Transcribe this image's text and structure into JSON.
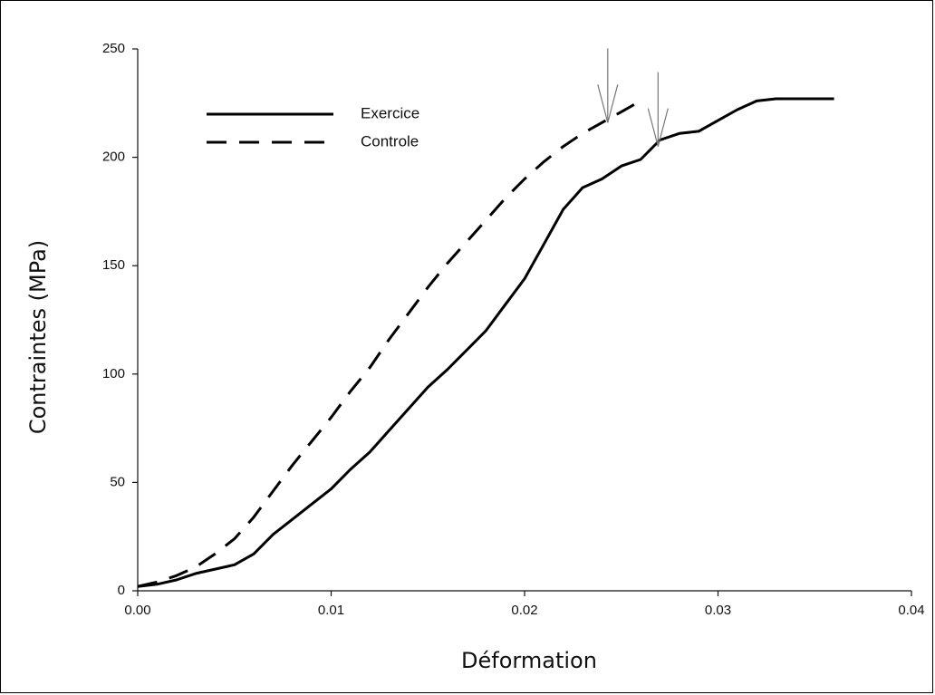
{
  "chart_data": {
    "type": "line",
    "title": "",
    "xlabel": "Déformation",
    "ylabel": "Contraintes (MPa)",
    "xlim": [
      0,
      0.04
    ],
    "ylim": [
      0,
      250
    ],
    "x_ticks": [
      0,
      0.01,
      0.02,
      0.03,
      0.04
    ],
    "x_tick_labels": [
      "0.00",
      "0.01",
      "0.02",
      "0.03",
      "0.04"
    ],
    "y_ticks": [
      0,
      50,
      100,
      150,
      200,
      250
    ],
    "y_tick_labels": [
      "0",
      "50",
      "100",
      "150",
      "200",
      "250"
    ],
    "grid": false,
    "legend_position": "top-left",
    "series": [
      {
        "name": "Exercice",
        "style": "solid",
        "color": "#000000",
        "x": [
          0,
          0.001,
          0.002,
          0.003,
          0.004,
          0.005,
          0.006,
          0.007,
          0.008,
          0.009,
          0.01,
          0.011,
          0.012,
          0.013,
          0.014,
          0.015,
          0.016,
          0.017,
          0.018,
          0.019,
          0.02,
          0.021,
          0.022,
          0.023,
          0.024,
          0.025,
          0.026,
          0.027,
          0.028,
          0.029,
          0.03,
          0.031,
          0.032,
          0.033,
          0.034,
          0.035,
          0.036
        ],
        "y": [
          2,
          3,
          5,
          8,
          10,
          12,
          17,
          26,
          33,
          40,
          47,
          56,
          64,
          74,
          84,
          94,
          102,
          111,
          120,
          132,
          144,
          160,
          176,
          186,
          190,
          196,
          199,
          208,
          211,
          212,
          217,
          222,
          226,
          227,
          227,
          227,
          227
        ]
      },
      {
        "name": "Controle",
        "style": "dashed",
        "color": "#000000",
        "x": [
          0,
          0.001,
          0.002,
          0.003,
          0.004,
          0.005,
          0.006,
          0.007,
          0.008,
          0.009,
          0.01,
          0.011,
          0.012,
          0.013,
          0.014,
          0.015,
          0.016,
          0.017,
          0.018,
          0.019,
          0.02,
          0.021,
          0.022,
          0.023,
          0.024,
          0.025,
          0.0258
        ],
        "y": [
          2,
          4,
          7,
          11,
          17,
          24,
          34,
          46,
          58,
          69,
          80,
          92,
          103,
          116,
          128,
          140,
          151,
          161,
          171,
          181,
          190,
          198,
          205,
          211,
          216,
          221,
          225
        ]
      }
    ],
    "annotations": [
      {
        "type": "arrow",
        "x": 0.0243,
        "y": 216
      },
      {
        "type": "arrow",
        "x": 0.0269,
        "y": 205
      }
    ]
  }
}
